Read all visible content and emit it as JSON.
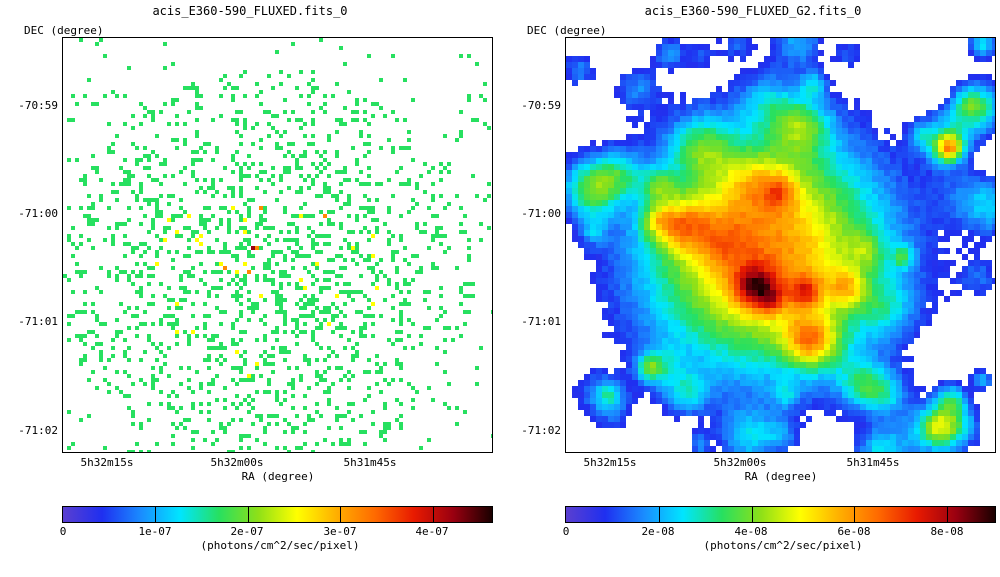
{
  "left": {
    "title": "acis_E360-590_FLUXED.fits_0",
    "y_axis_label": "DEC (degree)",
    "x_axis_label": "RA (degree)",
    "dec_ticks": [
      "-70:59",
      "-71:00",
      "-71:01",
      "-71:02"
    ],
    "ra_ticks": [
      "5h32m15s",
      "5h32m00s",
      "5h31m45s"
    ],
    "colorbar": {
      "ticks": [
        "0",
        "1e-07",
        "2e-07",
        "3e-07",
        "4e-07"
      ],
      "unit": "(photons/cm^2/sec/pixel)"
    }
  },
  "right": {
    "title": "acis_E360-590_FLUXED_G2.fits_0",
    "y_axis_label": "DEC (degree)",
    "x_axis_label": "RA (degree)",
    "dec_ticks": [
      "-70:59",
      "-71:00",
      "-71:01",
      "-71:02"
    ],
    "ra_ticks": [
      "5h32m15s",
      "5h32m00s",
      "5h31m45s"
    ],
    "colorbar": {
      "ticks": [
        "0",
        "2e-08",
        "4e-08",
        "6e-08",
        "8e-08"
      ],
      "unit": "(photons/cm^2/sec/pixel)"
    }
  },
  "colormap": [
    "#5a3fd0",
    "#1f2ff0",
    "#1a8cff",
    "#00e5ff",
    "#27e060",
    "#8ee018",
    "#ffff00",
    "#ffb000",
    "#ff6a00",
    "#e81a00",
    "#9a0010",
    "#1a0000"
  ]
}
